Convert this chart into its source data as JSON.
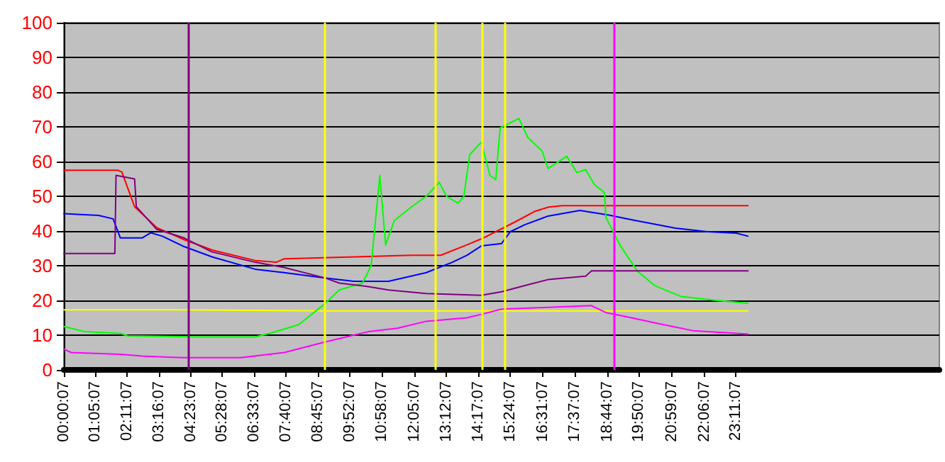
{
  "chart_data": {
    "type": "line",
    "xlim": [
      0,
      30.2
    ],
    "ylim": [
      0,
      100
    ],
    "yticks": [
      0,
      10,
      20,
      30,
      40,
      50,
      60,
      70,
      80,
      90,
      100
    ],
    "xticks": [
      {
        "value": 0.0019,
        "label": "00:00:07"
      },
      {
        "value": 1.0853,
        "label": "01:05:07"
      },
      {
        "value": 2.1853,
        "label": "02:11:07"
      },
      {
        "value": 3.2686,
        "label": "03:16:07"
      },
      {
        "value": 4.3853,
        "label": "04:23:07"
      },
      {
        "value": 5.4686,
        "label": "05:28:07"
      },
      {
        "value": 6.5519,
        "label": "06:33:07"
      },
      {
        "value": 7.6686,
        "label": "07:40:07"
      },
      {
        "value": 8.7519,
        "label": "08:45:07"
      },
      {
        "value": 9.8686,
        "label": "09:52:07"
      },
      {
        "value": 10.9686,
        "label": "10:58:07"
      },
      {
        "value": 12.0853,
        "label": "12:05:07"
      },
      {
        "value": 13.2019,
        "label": "13:12:07"
      },
      {
        "value": 14.2853,
        "label": "14:17:07"
      },
      {
        "value": 15.4019,
        "label": "15:24:07"
      },
      {
        "value": 16.5186,
        "label": "16:31:07"
      },
      {
        "value": 17.6186,
        "label": "17:37:07"
      },
      {
        "value": 18.7353,
        "label": "18:44:07"
      },
      {
        "value": 19.8353,
        "label": "19:50:07"
      },
      {
        "value": 20.9853,
        "label": "20:59:07"
      },
      {
        "value": 22.1019,
        "label": "22:06:07"
      },
      {
        "value": 23.1853,
        "label": "23:11:07"
      }
    ],
    "grid": "y",
    "marker": "none",
    "line_style": "solid",
    "series": [
      {
        "color": "#ffff00",
        "x": [
          0,
          4,
          9,
          12,
          16,
          20,
          23.6
        ],
        "values": [
          17.3,
          17.3,
          17,
          17,
          17,
          17,
          17
        ]
      },
      {
        "color": "#ff0000",
        "x": [
          0,
          1.86,
          2.0,
          2.44,
          3.2,
          4.15,
          5.13,
          6.6,
          7.33,
          7.6,
          12.0,
          13.0,
          13.9,
          14.42,
          15.54,
          16.23,
          16.72,
          17.2,
          23.6
        ],
        "values": [
          57.5,
          57.5,
          57,
          47,
          41,
          37.5,
          34.5,
          31.5,
          31,
          32,
          33,
          33,
          36,
          37.8,
          42.5,
          45.6,
          46.9,
          47.3,
          47.3
        ]
      },
      {
        "color": "#0000ff",
        "x": [
          0,
          1.2,
          1.7,
          1.95,
          2.7,
          3.0,
          3.4,
          4.15,
          5.13,
          6.6,
          7.6,
          9.0,
          10.0,
          11.2,
          12.5,
          13.4,
          13.9,
          14.4,
          15.1,
          15.4,
          15.9,
          16.7,
          17.8,
          18.8,
          19.6,
          21.1,
          22.2,
          23.2,
          23.6
        ],
        "values": [
          45,
          44.5,
          43.5,
          38,
          38,
          39.5,
          38.5,
          35.5,
          32.5,
          29,
          28,
          26.5,
          25.5,
          25.5,
          28,
          31,
          33,
          35.7,
          36.4,
          39.8,
          41.8,
          44.3,
          45.9,
          44.6,
          43.2,
          40.8,
          39.8,
          39.4,
          38.5
        ]
      },
      {
        "color": "#00ff00",
        "x": [
          0,
          0.73,
          1.95,
          2.2,
          4.6,
          6.6,
          7.1,
          8.1,
          9.0,
          9.5,
          10.3,
          10.6,
          10.9,
          11.1,
          11.4,
          12.0,
          12.5,
          12.95,
          13.2,
          13.6,
          13.8,
          14.0,
          14.4,
          14.7,
          14.9,
          15.05,
          15.7,
          16.0,
          16.5,
          16.7,
          17.35,
          17.7,
          18.0,
          18.3,
          18.65,
          18.7,
          19.2,
          19.8,
          20.4,
          21.3,
          22.4,
          23.6
        ],
        "values": [
          12.5,
          11,
          10.5,
          9.8,
          9.5,
          9.5,
          10.5,
          13,
          19,
          23,
          25,
          30,
          56,
          36,
          43,
          47,
          50,
          54,
          50,
          48,
          50,
          62,
          65.6,
          56,
          54.8,
          69.7,
          72.4,
          67,
          63,
          58,
          61.5,
          56.8,
          57.7,
          53.4,
          51,
          43.9,
          35.7,
          28.3,
          24.2,
          21.1,
          20.1,
          19.2
        ]
      },
      {
        "color": "#800080",
        "x": [
          0,
          1.76,
          1.8,
          2.44,
          2.5,
          3.2,
          4.15,
          5.1,
          6.6,
          7.6,
          9.0,
          9.5,
          10.5,
          11.2,
          12.5,
          14.4,
          15.1,
          15.9,
          16.7,
          18.0,
          18.2,
          23.6
        ],
        "values": [
          33.5,
          33.5,
          56,
          55,
          47,
          40.5,
          38,
          34,
          31,
          29.5,
          26.5,
          25,
          24,
          23,
          22,
          21.5,
          22.5,
          24.3,
          26,
          27,
          28.5,
          28.5
        ]
      },
      {
        "color": "#ff00ff",
        "x": [
          0,
          0.25,
          1.95,
          2.7,
          4.15,
          6.1,
          7.6,
          9.0,
          10.5,
          11.5,
          12.5,
          13.9,
          14.4,
          15.1,
          16.7,
          18.2,
          18.7,
          19.3,
          20.4,
          21.7,
          23.6
        ],
        "values": [
          6,
          5,
          4.5,
          4,
          3.5,
          3.5,
          5,
          8,
          11,
          12,
          14,
          15,
          16,
          17.5,
          18,
          18.5,
          16.5,
          15.5,
          13.5,
          11.3,
          10.3
        ]
      }
    ],
    "ref_lines": [
      {
        "axis": "x",
        "value": 4.3,
        "color": "#800080"
      },
      {
        "axis": "x",
        "value": 9.0,
        "color": "#ffff00"
      },
      {
        "axis": "x",
        "value": 12.8,
        "color": "#ffff00"
      },
      {
        "axis": "x",
        "value": 14.42,
        "color": "#ffff00"
      },
      {
        "axis": "x",
        "value": 15.2,
        "color": "#ffff00"
      },
      {
        "axis": "x",
        "value": 19.0,
        "color": "#ff00ff"
      }
    ]
  }
}
